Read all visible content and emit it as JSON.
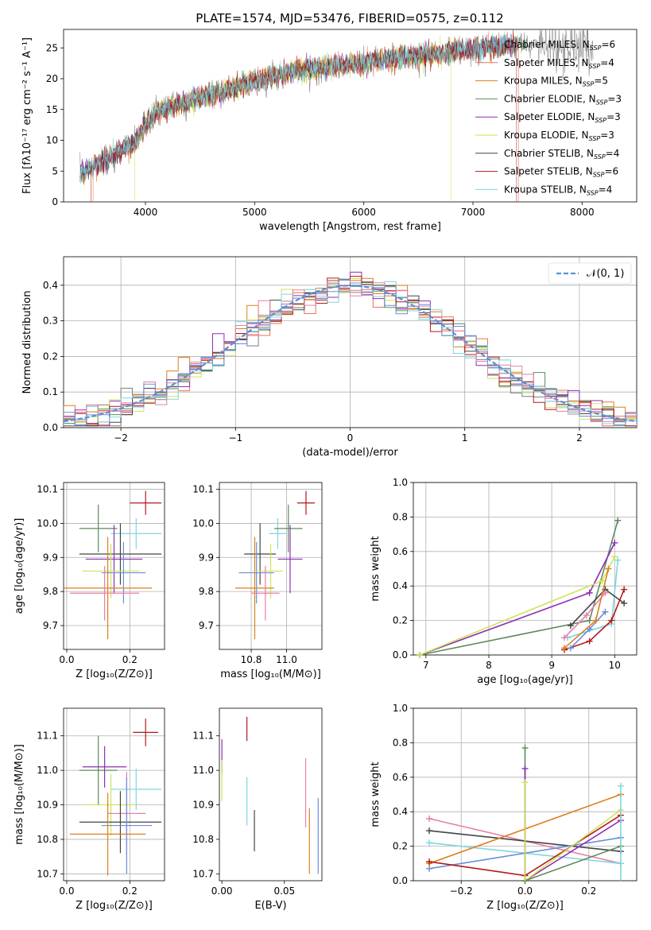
{
  "figure": {
    "title": "PLATE=1574, MJD=53476, FIBERID=0575, z=0.112"
  },
  "colors": {
    "Chabrier MILES": "#7f7f7f",
    "Salpeter MILES": "#e8735a",
    "Kroupa MILES": "#dd7f1c",
    "Chabrier ELODIE": "#5e8a5e",
    "Salpeter ELODIE": "#8e2fb3",
    "Kroupa ELODIE": "#cfe35a",
    "Chabrier STELIB": "#444444",
    "Salpeter STELIB": "#b31919",
    "Kroupa STELIB": "#7fd6e0",
    "Extra pink": "#e87fa8",
    "Extra blue": "#6a8fd8",
    "gaussian": "#5b8fd6"
  },
  "chart_data": [
    {
      "id": "spectrum",
      "type": "line",
      "title": "PLATE=1574, MJD=53476, FIBERID=0575, z=0.112",
      "xlabel": "wavelength [Angstrom, rest frame]",
      "ylabel": "Flux [fλ10⁻¹⁷ erg cm⁻² s⁻¹ A⁻¹]",
      "xlim": [
        3250,
        8500
      ],
      "ylim": [
        0,
        28
      ],
      "xticks": [
        4000,
        5000,
        6000,
        7000,
        8000
      ],
      "yticks": [
        0,
        5,
        10,
        15,
        20,
        25
      ],
      "grid": false,
      "legend_position": "top-right",
      "continuum_x": [
        3400,
        3500,
        3600,
        3700,
        3800,
        3900,
        4000,
        4100,
        4300,
        4500,
        4700,
        4900,
        5100,
        5300,
        5500,
        5700,
        5900,
        6100,
        6300,
        6500,
        6700,
        6900,
        7100,
        7300,
        7420
      ],
      "continuum_y": [
        4.6,
        5.5,
        6.3,
        7.5,
        8.6,
        9.5,
        12.5,
        14.5,
        15.8,
        17.0,
        17.8,
        19.0,
        20.0,
        21.0,
        21.6,
        22.0,
        22.3,
        22.8,
        23.4,
        23.7,
        24.0,
        24.6,
        25.0,
        25.3,
        25.5
      ],
      "series": [
        {
          "name": "Chabrier MILES",
          "nssp": "6"
        },
        {
          "name": "Salpeter MILES",
          "nssp": "4"
        },
        {
          "name": "Kroupa MILES",
          "nssp": "5"
        },
        {
          "name": "Chabrier ELODIE",
          "nssp": "3"
        },
        {
          "name": "Salpeter ELODIE",
          "nssp": "3"
        },
        {
          "name": "Kroupa ELODIE",
          "nssp": "3"
        },
        {
          "name": "Chabrier STELIB",
          "nssp": "4"
        },
        {
          "name": "Salpeter STELIB",
          "nssp": "6"
        },
        {
          "name": "Kroupa STELIB",
          "nssp": "4"
        }
      ]
    },
    {
      "id": "residuals",
      "type": "line",
      "xlabel": "(data-model)/error",
      "ylabel": "Normed distribution",
      "xlim": [
        -2.5,
        2.5
      ],
      "ylim": [
        0,
        0.48
      ],
      "xticks": [
        -2,
        -1,
        0,
        1,
        2
      ],
      "yticks": [
        0.0,
        0.1,
        0.2,
        0.3,
        0.4
      ],
      "grid": true,
      "legend_position": "top-right",
      "gaussian_label": "𝒩(0, 1)"
    },
    {
      "id": "age_vs_Z",
      "type": "scatter",
      "xlabel": "Z [log₁₀(Z/Z⊙)]",
      "ylabel": "age  [log₁₀(age/yr)]",
      "xlim": [
        -0.01,
        0.31
      ],
      "ylim": [
        9.63,
        10.12
      ],
      "xticks": [
        0.0,
        0.2
      ],
      "yticks": [
        9.7,
        9.8,
        9.9,
        10.0,
        10.1
      ],
      "grid": true,
      "points": [
        {
          "x": 0.25,
          "y": 10.06,
          "xerr": 0.05,
          "yerr": 0.035,
          "color": "#b31919"
        },
        {
          "x": 0.22,
          "y": 9.97,
          "xerr": 0.08,
          "yerr": 0.045,
          "color": "#7fd6e0"
        },
        {
          "x": 0.1,
          "y": 9.985,
          "xerr": 0.06,
          "yerr": 0.07,
          "color": "#5e8a5e"
        },
        {
          "x": 0.17,
          "y": 9.91,
          "xerr": 0.13,
          "yerr": 0.09,
          "color": "#444444"
        },
        {
          "x": 0.15,
          "y": 9.895,
          "xerr": 0.09,
          "yerr": 0.1,
          "color": "#8e2fb3"
        },
        {
          "x": 0.14,
          "y": 9.86,
          "xerr": 0.09,
          "yerr": 0.08,
          "color": "#cfe35a"
        },
        {
          "x": 0.18,
          "y": 9.855,
          "xerr": 0.07,
          "yerr": 0.09,
          "color": "#6a8fd8"
        },
        {
          "x": 0.13,
          "y": 9.81,
          "xerr": 0.14,
          "yerr": 0.15,
          "color": "#dd7f1c"
        },
        {
          "x": 0.12,
          "y": 9.795,
          "xerr": 0.11,
          "yerr": 0.08,
          "color": "#e87fa8"
        }
      ]
    },
    {
      "id": "age_vs_mass",
      "type": "scatter",
      "xlabel": "mass [log₁₀(M/M⊙)]",
      "xlim": [
        10.62,
        11.2
      ],
      "ylim": [
        9.63,
        10.12
      ],
      "xticks": [
        10.8,
        11.0
      ],
      "yticks": [
        9.7,
        9.8,
        9.9,
        10.0,
        10.1
      ],
      "grid": true,
      "points": [
        {
          "x": 11.11,
          "y": 10.06,
          "xerr": 0.05,
          "yerr": 0.035,
          "color": "#b31919"
        },
        {
          "x": 10.95,
          "y": 9.97,
          "xerr": 0.05,
          "yerr": 0.045,
          "color": "#7fd6e0"
        },
        {
          "x": 11.01,
          "y": 9.985,
          "xerr": 0.08,
          "yerr": 0.07,
          "color": "#5e8a5e"
        },
        {
          "x": 10.85,
          "y": 9.91,
          "xerr": 0.09,
          "yerr": 0.09,
          "color": "#444444"
        },
        {
          "x": 11.02,
          "y": 9.895,
          "xerr": 0.07,
          "yerr": 0.1,
          "color": "#8e2fb3"
        },
        {
          "x": 10.91,
          "y": 9.86,
          "xerr": 0.07,
          "yerr": 0.08,
          "color": "#cfe35a"
        },
        {
          "x": 10.83,
          "y": 9.855,
          "xerr": 0.1,
          "yerr": 0.09,
          "color": "#6a8fd8"
        },
        {
          "x": 10.82,
          "y": 9.81,
          "xerr": 0.11,
          "yerr": 0.15,
          "color": "#dd7f1c"
        },
        {
          "x": 10.88,
          "y": 9.795,
          "xerr": 0.08,
          "yerr": 0.08,
          "color": "#e87fa8"
        }
      ]
    },
    {
      "id": "weight_vs_age",
      "type": "line",
      "xlabel": "age  [log₁₀(age/yr)]",
      "ylabel": "mass weight",
      "xlim": [
        6.8,
        10.35
      ],
      "ylim": [
        0,
        1
      ],
      "xticks": [
        7,
        8,
        9,
        10
      ],
      "yticks": [
        0.0,
        0.2,
        0.4,
        0.6,
        0.8,
        1.0
      ],
      "grid": true,
      "series": [
        {
          "color": "#5e8a5e",
          "x": [
            6.9,
            9.6,
            10.05
          ],
          "y": [
            0.0,
            0.2,
            0.78
          ]
        },
        {
          "color": "#8e2fb3",
          "x": [
            6.9,
            9.6,
            10.0
          ],
          "y": [
            0.0,
            0.36,
            0.65
          ]
        },
        {
          "color": "#cfe35a",
          "x": [
            6.9,
            9.8,
            10.0
          ],
          "y": [
            0.0,
            0.43,
            0.57
          ]
        },
        {
          "color": "#7fd6e0",
          "x": [
            9.25,
            9.95,
            10.05
          ],
          "y": [
            0.1,
            0.18,
            0.55
          ]
        },
        {
          "color": "#444444",
          "x": [
            9.3,
            9.85,
            10.15
          ],
          "y": [
            0.17,
            0.38,
            0.3
          ]
        },
        {
          "color": "#b31919",
          "x": [
            9.2,
            9.6,
            9.95,
            10.15
          ],
          "y": [
            0.03,
            0.08,
            0.2,
            0.38
          ]
        },
        {
          "color": "#e87fa8",
          "x": [
            9.2,
            9.55,
            9.85
          ],
          "y": [
            0.1,
            0.23,
            0.36
          ]
        },
        {
          "color": "#6a8fd8",
          "x": [
            9.3,
            9.6,
            9.85
          ],
          "y": [
            0.04,
            0.15,
            0.25
          ]
        },
        {
          "color": "#dd7f1c",
          "x": [
            9.2,
            9.7,
            9.9
          ],
          "y": [
            0.04,
            0.2,
            0.5
          ]
        }
      ]
    },
    {
      "id": "mass_vs_Z",
      "type": "scatter",
      "xlabel": "Z [log₁₀(Z/Z⊙)]",
      "ylabel": "mass [log₁₀(M/M⊙)]",
      "xlim": [
        -0.01,
        0.31
      ],
      "ylim": [
        10.68,
        11.18
      ],
      "xticks": [
        0.0,
        0.2
      ],
      "yticks": [
        10.7,
        10.8,
        10.9,
        11.0,
        11.1
      ],
      "grid": true,
      "points": [
        {
          "x": 0.25,
          "y": 11.11,
          "xerr": 0.04,
          "yerr": 0.04,
          "color": "#b31919"
        },
        {
          "x": 0.1,
          "y": 11.0,
          "xerr": 0.06,
          "yerr": 0.1,
          "color": "#5e8a5e"
        },
        {
          "x": 0.12,
          "y": 11.01,
          "xerr": 0.07,
          "yerr": 0.06,
          "color": "#8e2fb3"
        },
        {
          "x": 0.22,
          "y": 10.945,
          "xerr": 0.08,
          "yerr": 0.06,
          "color": "#7fd6e0"
        },
        {
          "x": 0.14,
          "y": 10.9,
          "xerr": 0.08,
          "yerr": 0.09,
          "color": "#cfe35a"
        },
        {
          "x": 0.19,
          "y": 10.875,
          "xerr": 0.06,
          "yerr": 0.12,
          "color": "#e87fa8"
        },
        {
          "x": 0.17,
          "y": 10.85,
          "xerr": 0.13,
          "yerr": 0.09,
          "color": "#444444"
        },
        {
          "x": 0.19,
          "y": 10.84,
          "xerr": 0.08,
          "yerr": 0.14,
          "color": "#6a8fd8"
        },
        {
          "x": 0.13,
          "y": 10.815,
          "xerr": 0.12,
          "yerr": 0.12,
          "color": "#dd7f1c"
        }
      ]
    },
    {
      "id": "mass_vs_ebv",
      "type": "scatter",
      "xlabel": "E(B-V)",
      "xlim": [
        -0.002,
        0.08
      ],
      "ylim": [
        10.68,
        11.18
      ],
      "xticks": [
        0.0,
        0.05
      ],
      "yticks": [
        10.7,
        10.8,
        10.9,
        11.0,
        11.1
      ],
      "grid": false,
      "points": [
        {
          "x": 0.02,
          "y": 11.12,
          "xerr": 0.0,
          "yerr": 0.035,
          "color": "#b31919"
        },
        {
          "x": 0.0,
          "y": 11.04,
          "xerr": 0.0,
          "yerr": 0.05,
          "color": "#8e2fb3"
        },
        {
          "x": 0.0,
          "y": 10.97,
          "xerr": 0.0,
          "yerr": 0.06,
          "color": "#cfe35a"
        },
        {
          "x": 0.02,
          "y": 10.91,
          "xerr": 0.0,
          "yerr": 0.07,
          "color": "#7fd6e0"
        },
        {
          "x": 0.026,
          "y": 10.825,
          "xerr": 0.0,
          "yerr": 0.06,
          "color": "#444444"
        },
        {
          "x": 0.067,
          "y": 10.935,
          "xerr": 0.0,
          "yerr": 0.1,
          "color": "#e87fa8"
        },
        {
          "x": 0.07,
          "y": 10.795,
          "xerr": 0.0,
          "yerr": 0.095,
          "color": "#dd7f1c"
        },
        {
          "x": 0.077,
          "y": 10.81,
          "xerr": 0.0,
          "yerr": 0.11,
          "color": "#6a8fd8"
        }
      ]
    },
    {
      "id": "weight_vs_Z",
      "type": "line",
      "xlabel": "Z [log₁₀(Z/Z⊙)]",
      "ylabel": "mass weight",
      "xlim": [
        -0.35,
        0.35
      ],
      "ylim": [
        0,
        1
      ],
      "xticks": [
        -0.2,
        0.0,
        0.2
      ],
      "yticks": [
        0.0,
        0.2,
        0.4,
        0.6,
        0.8,
        1.0
      ],
      "grid": true,
      "series": [
        {
          "color": "#e87fa8",
          "x": [
            -0.3,
            0.3
          ],
          "y": [
            0.36,
            0.1
          ]
        },
        {
          "color": "#444444",
          "x": [
            -0.3,
            0.3
          ],
          "y": [
            0.29,
            0.17
          ]
        },
        {
          "color": "#7fd6e0",
          "x": [
            -0.3,
            0.0,
            0.3
          ],
          "y": [
            0.22,
            0.16,
            0.1
          ]
        },
        {
          "color": "#6a8fd8",
          "x": [
            -0.3,
            0.3
          ],
          "y": [
            0.07,
            0.25
          ]
        },
        {
          "color": "#dd7f1c",
          "x": [
            -0.3,
            0.3
          ],
          "y": [
            0.1,
            0.5
          ]
        },
        {
          "color": "#b31919",
          "x": [
            -0.3,
            0.0,
            0.3
          ],
          "y": [
            0.11,
            0.03,
            0.38
          ]
        },
        {
          "color": "#8e2fb3",
          "x": [
            0.0,
            0.3
          ],
          "y": [
            0.0,
            0.35
          ]
        },
        {
          "color": "#cfe35a",
          "x": [
            0.0,
            0.3
          ],
          "y": [
            0.0,
            0.41
          ]
        },
        {
          "color": "#5e8a5e",
          "x": [
            0.0,
            0.3
          ],
          "y": [
            0.0,
            0.2
          ]
        }
      ],
      "markers": [
        {
          "color": "#5e8a5e",
          "x": 0.0,
          "y": 0.77
        },
        {
          "color": "#8e2fb3",
          "x": 0.0,
          "y": 0.65
        },
        {
          "color": "#cfe35a",
          "x": 0.0,
          "y": 0.57
        },
        {
          "color": "#7fd6e0",
          "x": 0.3,
          "y": 0.55
        }
      ]
    }
  ]
}
